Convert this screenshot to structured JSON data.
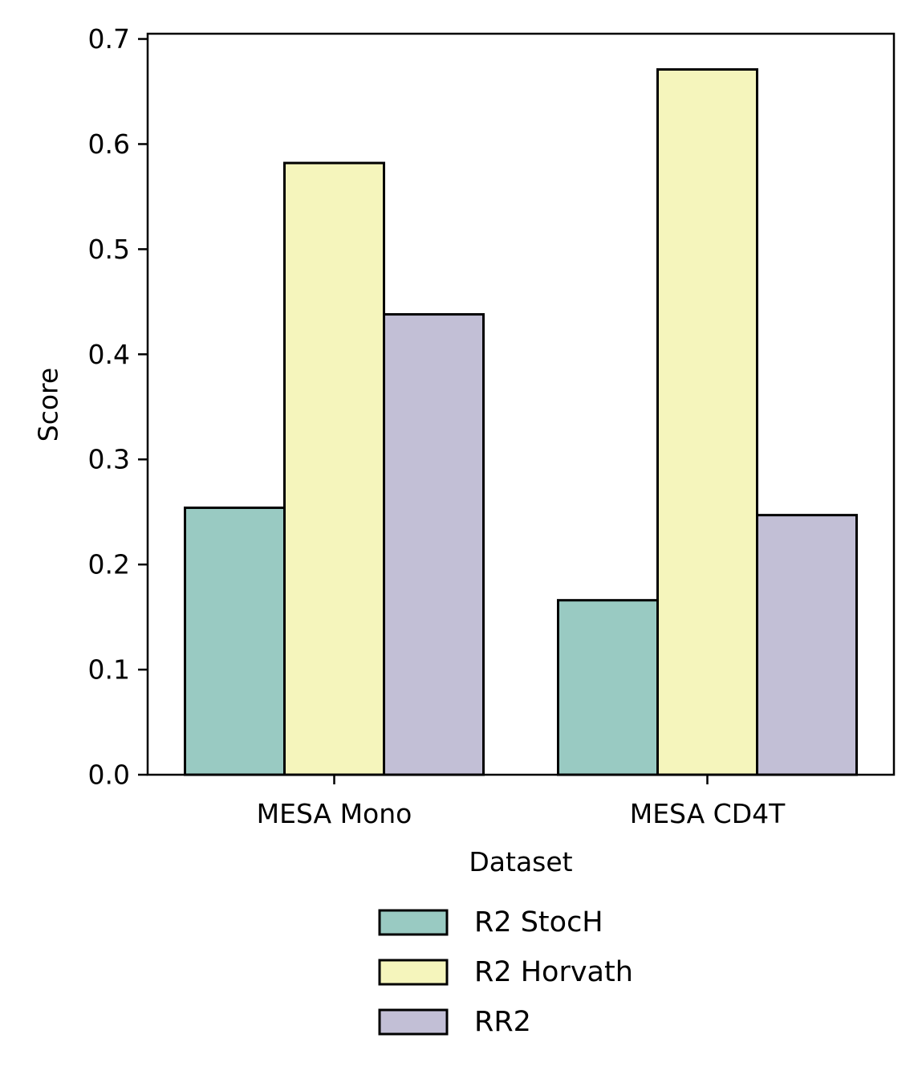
{
  "chart_data": {
    "type": "bar",
    "categories": [
      "MESA Mono",
      "MESA CD4T"
    ],
    "series": [
      {
        "name": "R2 StocH",
        "values": [
          0.254,
          0.166
        ],
        "color": "#99cac2"
      },
      {
        "name": "R2 Horvath",
        "values": [
          0.582,
          0.671
        ],
        "color": "#f5f5bc"
      },
      {
        "name": "RR2",
        "values": [
          0.438,
          0.247
        ],
        "color": "#c2bfd6"
      }
    ],
    "xlabel": "Dataset",
    "ylabel": "Score",
    "ylim": [
      0,
      0.705
    ],
    "yticks": [
      "0.0",
      "0.1",
      "0.2",
      "0.3",
      "0.4",
      "0.5",
      "0.6",
      "0.7"
    ],
    "grid": false,
    "legend_position": "bottom-center"
  }
}
